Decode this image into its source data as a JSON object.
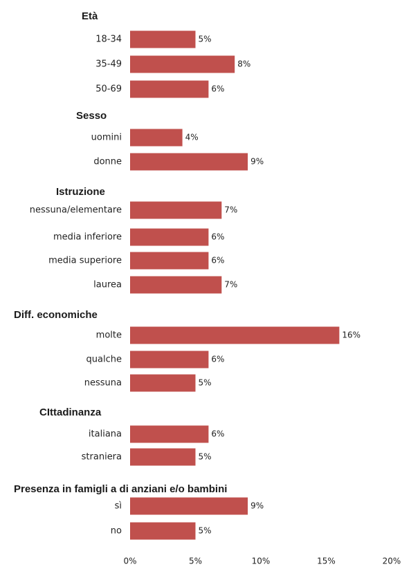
{
  "chart_data": {
    "type": "bar",
    "orientation": "horizontal",
    "bar_color": "#C0504D",
    "xlim": [
      0,
      20
    ],
    "x_ticks": [
      "0%",
      "5%",
      "10%",
      "15%",
      "20%"
    ],
    "groups": [
      {
        "title": "Età",
        "rows": [
          {
            "label": "18-34",
            "value": 5,
            "value_label": "5%"
          },
          {
            "label": "35-49",
            "value": 8,
            "value_label": "8%"
          },
          {
            "label": "50-69",
            "value": 6,
            "value_label": "6%"
          }
        ]
      },
      {
        "title": "Sesso",
        "rows": [
          {
            "label": "uomini",
            "value": 4,
            "value_label": "4%"
          },
          {
            "label": "donne",
            "value": 9,
            "value_label": "9%"
          }
        ]
      },
      {
        "title": "Istruzione",
        "rows": [
          {
            "label": "nessuna/elementare",
            "value": 7,
            "value_label": "7%"
          },
          {
            "label": "media inferiore",
            "value": 6,
            "value_label": "6%"
          },
          {
            "label": "media superiore",
            "value": 6,
            "value_label": "6%"
          },
          {
            "label": "laurea",
            "value": 7,
            "value_label": "7%"
          }
        ]
      },
      {
        "title": "Diff. economiche",
        "rows": [
          {
            "label": "molte",
            "value": 16,
            "value_label": "16%"
          },
          {
            "label": "qualche",
            "value": 6,
            "value_label": "6%"
          },
          {
            "label": "nessuna",
            "value": 5,
            "value_label": "5%"
          }
        ]
      },
      {
        "title": "CIttadinanza",
        "rows": [
          {
            "label": "italiana",
            "value": 6,
            "value_label": "6%"
          },
          {
            "label": "straniera",
            "value": 5,
            "value_label": "5%"
          }
        ]
      },
      {
        "title": "Presenza in famigli a di anziani e/o bambini",
        "rows": [
          {
            "label": "sì",
            "value": 9,
            "value_label": "9%"
          },
          {
            "label": "no",
            "value": 5,
            "value_label": "5%"
          }
        ]
      }
    ]
  }
}
